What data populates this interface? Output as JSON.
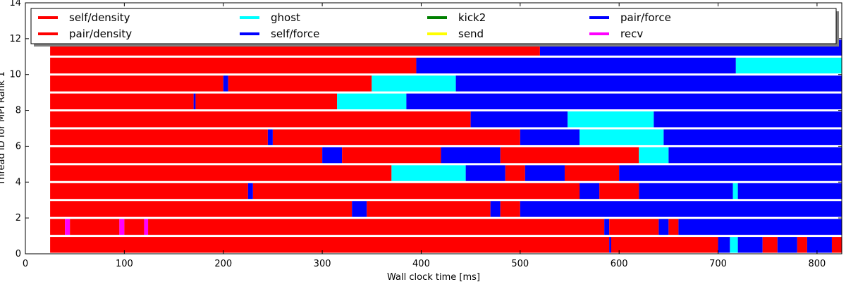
{
  "chart_data": {
    "type": "gantt",
    "title": "",
    "xlabel": "Wall clock time [ms]",
    "ylabel": "Thread ID for MPI Rank 1",
    "xlim": [
      0,
      825
    ],
    "ylim": [
      0,
      14
    ],
    "x_ticks": [
      0,
      100,
      200,
      300,
      400,
      500,
      600,
      700,
      800
    ],
    "y_ticks": [
      0,
      2,
      4,
      6,
      8,
      10,
      12,
      14
    ],
    "legend_position": "top",
    "legend": [
      {
        "name": "self/density",
        "color": "#ff0000"
      },
      {
        "name": "pair/density",
        "color": "#ff0000"
      },
      {
        "name": "ghost",
        "color": "#00ffff"
      },
      {
        "name": "self/force",
        "color": "#0000ff"
      },
      {
        "name": "kick2",
        "color": "#008000"
      },
      {
        "name": "send",
        "color": "#ffff00"
      },
      {
        "name": "pair/force",
        "color": "#0000ff"
      },
      {
        "name": "recv",
        "color": "#ff00ff"
      }
    ],
    "threads": [
      {
        "thread": 0,
        "segments": [
          {
            "task": "pair/density",
            "start": 25,
            "end": 590
          },
          {
            "task": "self/force",
            "start": 590,
            "end": 592
          },
          {
            "task": "pair/density",
            "start": 592,
            "end": 700
          },
          {
            "task": "pair/force",
            "start": 700,
            "end": 712
          },
          {
            "task": "ghost",
            "start": 712,
            "end": 720
          },
          {
            "task": "pair/force",
            "start": 720,
            "end": 745
          },
          {
            "task": "pair/density",
            "start": 745,
            "end": 760
          },
          {
            "task": "pair/force",
            "start": 760,
            "end": 780
          },
          {
            "task": "pair/density",
            "start": 780,
            "end": 790
          },
          {
            "task": "pair/force",
            "start": 790,
            "end": 815
          },
          {
            "task": "pair/density",
            "start": 815,
            "end": 825
          }
        ]
      },
      {
        "thread": 1,
        "segments": [
          {
            "task": "pair/density",
            "start": 25,
            "end": 40
          },
          {
            "task": "recv",
            "start": 40,
            "end": 45
          },
          {
            "task": "pair/density",
            "start": 45,
            "end": 95
          },
          {
            "task": "recv",
            "start": 95,
            "end": 100
          },
          {
            "task": "pair/density",
            "start": 100,
            "end": 120
          },
          {
            "task": "recv",
            "start": 120,
            "end": 124
          },
          {
            "task": "pair/density",
            "start": 124,
            "end": 585
          },
          {
            "task": "pair/force",
            "start": 585,
            "end": 590
          },
          {
            "task": "pair/density",
            "start": 590,
            "end": 640
          },
          {
            "task": "pair/force",
            "start": 640,
            "end": 650
          },
          {
            "task": "pair/density",
            "start": 650,
            "end": 660
          },
          {
            "task": "pair/force",
            "start": 660,
            "end": 825
          }
        ]
      },
      {
        "thread": 2,
        "segments": [
          {
            "task": "pair/density",
            "start": 25,
            "end": 330
          },
          {
            "task": "pair/force",
            "start": 330,
            "end": 345
          },
          {
            "task": "pair/density",
            "start": 345,
            "end": 470
          },
          {
            "task": "pair/force",
            "start": 470,
            "end": 480
          },
          {
            "task": "pair/density",
            "start": 480,
            "end": 500
          },
          {
            "task": "pair/force",
            "start": 500,
            "end": 830
          }
        ]
      },
      {
        "thread": 3,
        "segments": [
          {
            "task": "pair/density",
            "start": 25,
            "end": 225
          },
          {
            "task": "pair/force",
            "start": 225,
            "end": 230
          },
          {
            "task": "pair/density",
            "start": 230,
            "end": 560
          },
          {
            "task": "pair/force",
            "start": 560,
            "end": 580
          },
          {
            "task": "pair/density",
            "start": 580,
            "end": 620
          },
          {
            "task": "pair/force",
            "start": 620,
            "end": 715
          },
          {
            "task": "ghost",
            "start": 715,
            "end": 720
          },
          {
            "task": "pair/force",
            "start": 720,
            "end": 830
          }
        ]
      },
      {
        "thread": 4,
        "segments": [
          {
            "task": "pair/density",
            "start": 25,
            "end": 370
          },
          {
            "task": "ghost",
            "start": 370,
            "end": 445
          },
          {
            "task": "pair/force",
            "start": 445,
            "end": 485
          },
          {
            "task": "pair/density",
            "start": 485,
            "end": 505
          },
          {
            "task": "pair/force",
            "start": 505,
            "end": 545
          },
          {
            "task": "pair/density",
            "start": 545,
            "end": 600
          },
          {
            "task": "pair/force",
            "start": 600,
            "end": 830
          }
        ]
      },
      {
        "thread": 5,
        "segments": [
          {
            "task": "pair/density",
            "start": 25,
            "end": 300
          },
          {
            "task": "pair/force",
            "start": 300,
            "end": 320
          },
          {
            "task": "pair/density",
            "start": 320,
            "end": 420
          },
          {
            "task": "pair/force",
            "start": 420,
            "end": 480
          },
          {
            "task": "pair/density",
            "start": 480,
            "end": 620
          },
          {
            "task": "ghost",
            "start": 620,
            "end": 650
          },
          {
            "task": "pair/force",
            "start": 650,
            "end": 830
          }
        ]
      },
      {
        "thread": 6,
        "segments": [
          {
            "task": "pair/density",
            "start": 25,
            "end": 245
          },
          {
            "task": "pair/force",
            "start": 245,
            "end": 250
          },
          {
            "task": "pair/density",
            "start": 250,
            "end": 500
          },
          {
            "task": "pair/force",
            "start": 500,
            "end": 560
          },
          {
            "task": "ghost",
            "start": 560,
            "end": 645
          },
          {
            "task": "pair/force",
            "start": 645,
            "end": 830
          }
        ]
      },
      {
        "thread": 7,
        "segments": [
          {
            "task": "pair/density",
            "start": 25,
            "end": 450
          },
          {
            "task": "pair/force",
            "start": 450,
            "end": 548
          },
          {
            "task": "ghost",
            "start": 548,
            "end": 635
          },
          {
            "task": "pair/force",
            "start": 635,
            "end": 830
          }
        ]
      },
      {
        "thread": 8,
        "segments": [
          {
            "task": "pair/density",
            "start": 25,
            "end": 170
          },
          {
            "task": "pair/force",
            "start": 170,
            "end": 172
          },
          {
            "task": "pair/density",
            "start": 172,
            "end": 315
          },
          {
            "task": "ghost",
            "start": 315,
            "end": 385
          },
          {
            "task": "pair/force",
            "start": 385,
            "end": 830
          }
        ]
      },
      {
        "thread": 9,
        "segments": [
          {
            "task": "pair/density",
            "start": 25,
            "end": 200
          },
          {
            "task": "pair/force",
            "start": 200,
            "end": 205
          },
          {
            "task": "pair/density",
            "start": 205,
            "end": 350
          },
          {
            "task": "ghost",
            "start": 350,
            "end": 435
          },
          {
            "task": "pair/force",
            "start": 435,
            "end": 830
          }
        ]
      },
      {
        "thread": 10,
        "segments": [
          {
            "task": "pair/density",
            "start": 25,
            "end": 395
          },
          {
            "task": "pair/force",
            "start": 395,
            "end": 718
          },
          {
            "task": "ghost",
            "start": 718,
            "end": 830
          }
        ]
      },
      {
        "thread": 11,
        "segments": [
          {
            "task": "pair/density",
            "start": 25,
            "end": 520
          },
          {
            "task": "pair/force",
            "start": 520,
            "end": 830
          }
        ]
      }
    ]
  }
}
